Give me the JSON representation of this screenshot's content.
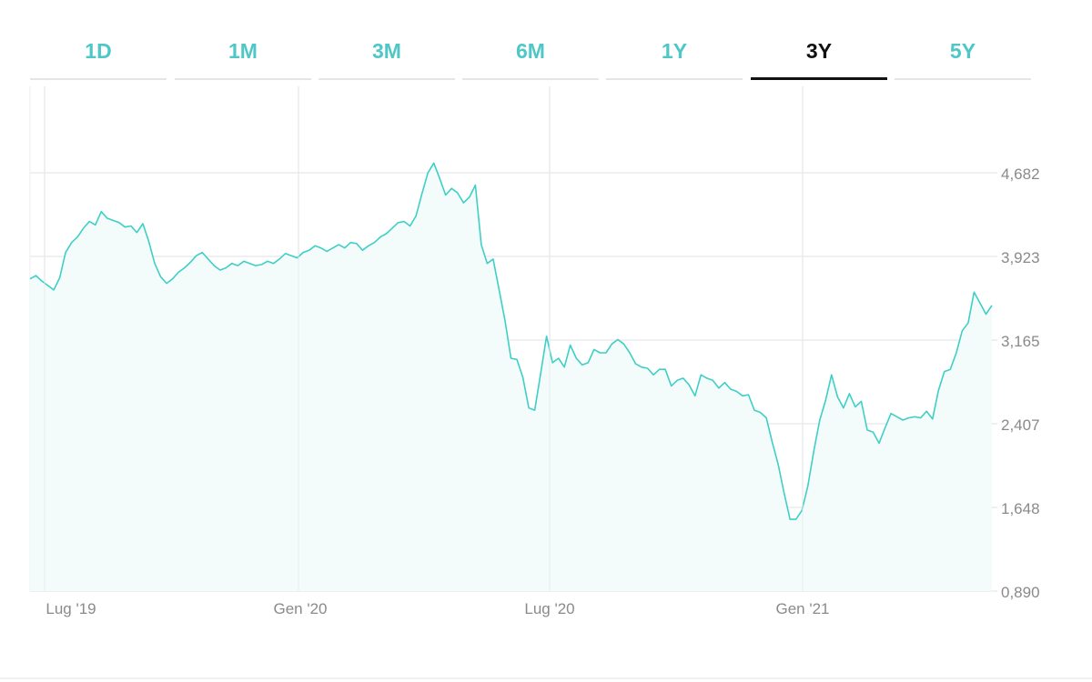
{
  "tabs": [
    {
      "label": "1D",
      "active": false
    },
    {
      "label": "1M",
      "active": false
    },
    {
      "label": "3M",
      "active": false
    },
    {
      "label": "6M",
      "active": false
    },
    {
      "label": "1Y",
      "active": false
    },
    {
      "label": "3Y",
      "active": true
    },
    {
      "label": "5Y",
      "active": false
    }
  ],
  "colors": {
    "accent": "#4fc7c7",
    "line": "#3ecfc6",
    "fill": "#f4fbfb",
    "active_tab": "#111111",
    "grid": "#e6e8ec",
    "tick_text": "#8a8a8a"
  },
  "chart_data": {
    "type": "area",
    "title": "",
    "xlabel": "",
    "ylabel": "",
    "x_ticks": [
      "Lug '19",
      "Gen '20",
      "Lug '20",
      "Gen '21"
    ],
    "y_ticks": [
      "4,682",
      "3,923",
      "3,165",
      "2,407",
      "1,648",
      "0,890"
    ],
    "ylim": [
      0.89,
      5.84
    ],
    "x_range": [
      "2019-06",
      "2021-06"
    ],
    "grid": true,
    "series": [
      {
        "values": [
          3.72,
          3.75,
          3.7,
          3.66,
          3.62,
          3.73,
          3.96,
          4.05,
          4.1,
          4.18,
          4.24,
          4.21,
          4.33,
          4.27,
          4.25,
          4.23,
          4.19,
          4.2,
          4.14,
          4.22,
          4.06,
          3.86,
          3.74,
          3.68,
          3.72,
          3.78,
          3.82,
          3.87,
          3.93,
          3.96,
          3.9,
          3.84,
          3.8,
          3.82,
          3.86,
          3.84,
          3.88,
          3.86,
          3.84,
          3.85,
          3.88,
          3.86,
          3.9,
          3.95,
          3.93,
          3.91,
          3.96,
          3.98,
          4.02,
          4.0,
          3.97,
          4.0,
          4.03,
          4.0,
          4.05,
          4.04,
          3.98,
          4.02,
          4.05,
          4.1,
          4.13,
          4.18,
          4.23,
          4.24,
          4.2,
          4.29,
          4.49,
          4.68,
          4.77,
          4.63,
          4.48,
          4.54,
          4.5,
          4.41,
          4.46,
          4.57,
          4.03,
          3.86,
          3.9,
          3.62,
          3.34,
          3.0,
          2.99,
          2.83,
          2.55,
          2.53,
          2.86,
          3.2,
          2.96,
          3.0,
          2.92,
          3.12,
          3.0,
          2.94,
          2.96,
          3.08,
          3.05,
          3.05,
          3.13,
          3.17,
          3.13,
          3.05,
          2.95,
          2.92,
          2.91,
          2.85,
          2.9,
          2.9,
          2.75,
          2.8,
          2.82,
          2.76,
          2.66,
          2.85,
          2.82,
          2.8,
          2.73,
          2.78,
          2.72,
          2.7,
          2.66,
          2.67,
          2.53,
          2.51,
          2.46,
          2.24,
          2.04,
          1.78,
          1.54,
          1.54,
          1.62,
          1.84,
          2.16,
          2.44,
          2.62,
          2.85,
          2.65,
          2.55,
          2.68,
          2.56,
          2.61,
          2.35,
          2.33,
          2.23,
          2.37,
          2.5,
          2.47,
          2.44,
          2.46,
          2.47,
          2.46,
          2.52,
          2.45,
          2.71,
          2.88,
          2.9,
          3.05,
          3.25,
          3.32,
          3.6,
          3.5,
          3.4,
          3.48
        ]
      }
    ]
  }
}
